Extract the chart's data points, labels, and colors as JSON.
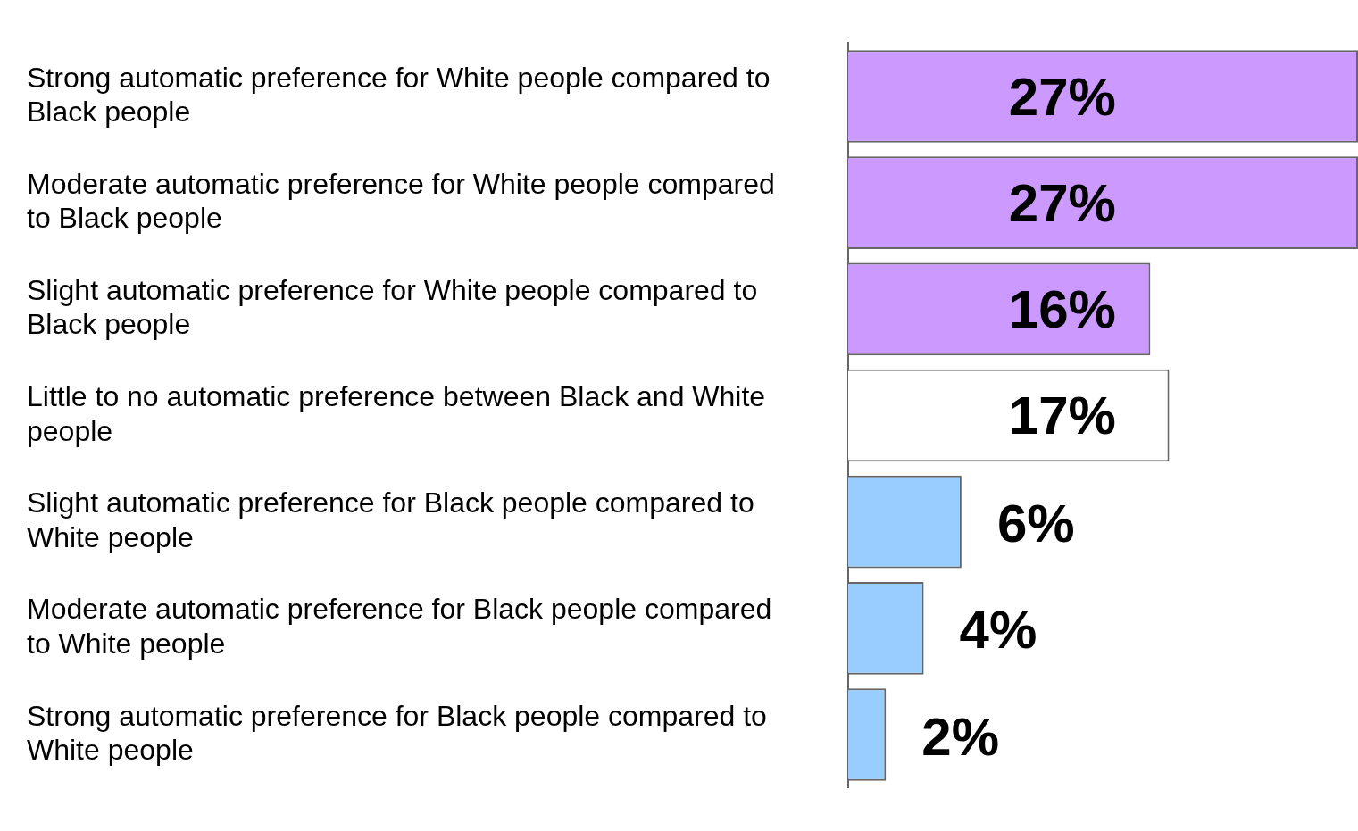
{
  "chart_data": {
    "type": "bar",
    "orientation": "horizontal",
    "categories": [
      "Strong automatic preference for White people compared to Black people",
      "Moderate automatic preference for White people compared to Black people",
      "Slight automatic preference for White people compared to Black people",
      "Little to no automatic preference between Black and White people",
      "Slight automatic preference for Black people compared to White people",
      "Moderate automatic preference for Black people compared to White people",
      "Strong automatic preference for Black people compared to White people"
    ],
    "values": [
      27,
      27,
      16,
      17,
      6,
      4,
      2
    ],
    "colors": [
      "#cc99ff",
      "#cc99ff",
      "#cc99ff",
      "#ffffff",
      "#99ccff",
      "#99ccff",
      "#99ccff"
    ],
    "value_labels": [
      "27%",
      "27%",
      "16%",
      "17%",
      "6%",
      "4%",
      "2%"
    ],
    "tick_labels": "y",
    "legend": false
  }
}
